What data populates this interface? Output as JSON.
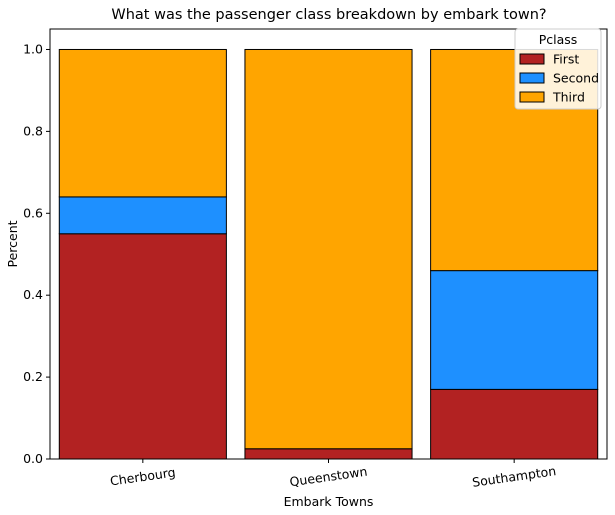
{
  "chart_data": {
    "type": "bar",
    "stacked": true,
    "title": "What was the passenger class breakdown by embark town?",
    "xlabel": "Embark Towns",
    "ylabel": "Percent",
    "categories": [
      "Cherbourg",
      "Queenstown",
      "Southampton"
    ],
    "series": [
      {
        "name": "First",
        "color": "#b22222",
        "values": [
          0.55,
          0.025,
          0.17
        ]
      },
      {
        "name": "Second",
        "color": "#1e90ff",
        "values": [
          0.09,
          0.0,
          0.29
        ]
      },
      {
        "name": "Third",
        "color": "#ffa500",
        "values": [
          0.36,
          0.975,
          0.54
        ]
      }
    ],
    "ylim": [
      0,
      1.05
    ],
    "yticks": [
      "0.0",
      "0.2",
      "0.4",
      "0.6",
      "0.8",
      "1.0"
    ],
    "legend": {
      "title": "Pclass",
      "placement": "top-right"
    },
    "grid": false
  }
}
